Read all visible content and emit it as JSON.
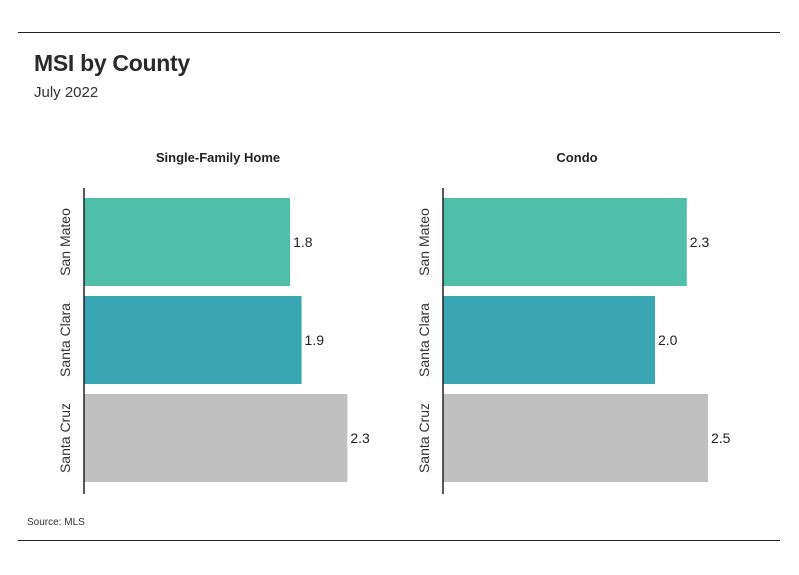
{
  "header": {
    "title": "MSI by County",
    "subtitle": "July 2022"
  },
  "footer": {
    "source": "Source: MLS"
  },
  "colors": {
    "san_mateo": "#50bfa9",
    "santa_clara": "#3aa6b3",
    "santa_cruz": "#c0c0c0",
    "axis": "#222222"
  },
  "chart_data": [
    {
      "type": "bar",
      "orientation": "horizontal",
      "title": "Single-Family Home",
      "categories": [
        "San Mateo",
        "Santa Clara",
        "Santa Cruz"
      ],
      "values": [
        1.8,
        1.9,
        2.3
      ],
      "value_labels": [
        "1.8",
        "1.9",
        "2.3"
      ],
      "xlim": [
        0,
        2.5
      ],
      "grid": false
    },
    {
      "type": "bar",
      "orientation": "horizontal",
      "title": "Condo",
      "categories": [
        "San Mateo",
        "Santa Clara",
        "Santa Cruz"
      ],
      "values": [
        2.3,
        2.0,
        2.5
      ],
      "value_labels": [
        "2.3",
        "2.0",
        "2.5"
      ],
      "xlim": [
        0,
        2.6
      ],
      "grid": false
    }
  ]
}
